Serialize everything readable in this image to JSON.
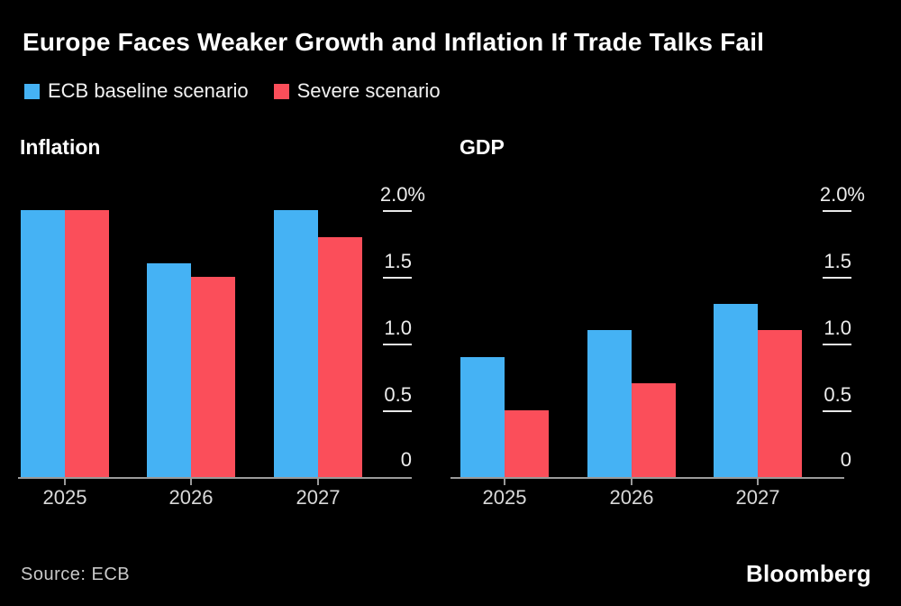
{
  "title": "Europe Faces Weaker Growth and Inflation If Trade Talks Fail",
  "legend": [
    {
      "label": "ECB baseline scenario",
      "color": "#45b2f4"
    },
    {
      "label": "Severe scenario",
      "color": "#fb4e5a"
    }
  ],
  "colors": {
    "background": "#000000",
    "baseline_series": "#45b2f4",
    "severe_series": "#fb4e5a",
    "axis_line": "#9a9a9a",
    "tick_dash": "#e8e8e8",
    "axis_text": "#ededed",
    "category_text": "#d9d9d9",
    "title_text": "#ffffff"
  },
  "footer": {
    "source": "Source: ECB",
    "brand": "Bloomberg"
  },
  "chart_data": [
    {
      "type": "bar",
      "title": "Inflation",
      "categories": [
        "2025",
        "2026",
        "2027"
      ],
      "series": [
        {
          "name": "ECB baseline scenario",
          "values": [
            2.0,
            1.6,
            2.0
          ]
        },
        {
          "name": "Severe scenario",
          "values": [
            2.0,
            1.5,
            1.8
          ]
        }
      ],
      "ylabel": "%",
      "ylim": [
        0,
        2.0
      ],
      "yticks": [
        0,
        0.5,
        1.0,
        1.5,
        2.0
      ],
      "ytick_labels": [
        "0",
        "0.5",
        "1.0",
        "1.5",
        "2.0%"
      ],
      "grid": false,
      "legend_position": "top",
      "axis_side": "right"
    },
    {
      "type": "bar",
      "title": "GDP",
      "categories": [
        "2025",
        "2026",
        "2027"
      ],
      "series": [
        {
          "name": "ECB baseline scenario",
          "values": [
            0.9,
            1.1,
            1.3
          ]
        },
        {
          "name": "Severe scenario",
          "values": [
            0.5,
            0.7,
            1.1
          ]
        }
      ],
      "ylabel": "%",
      "ylim": [
        0,
        2.0
      ],
      "yticks": [
        0,
        0.5,
        1.0,
        1.5,
        2.0
      ],
      "ytick_labels": [
        "0",
        "0.5",
        "1.0",
        "1.5",
        "2.0%"
      ],
      "grid": false,
      "legend_position": "top",
      "axis_side": "right"
    }
  ]
}
